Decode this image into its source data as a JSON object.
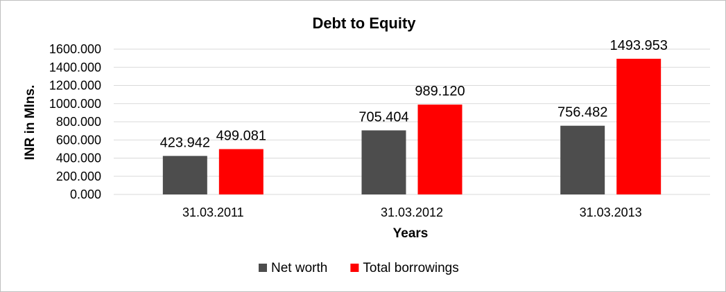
{
  "chart_data": {
    "type": "bar",
    "title": "Debt to Equity",
    "xlabel": "Years",
    "ylabel": "INR in Mlns.",
    "categories": [
      "31.03.2011",
      "31.03.2012",
      "31.03.2013"
    ],
    "series": [
      {
        "name": "Net worth",
        "color": "#4d4d4d",
        "values": [
          423.942,
          705.404,
          756.482
        ],
        "labels": [
          "423.942",
          "705.404",
          "756.482"
        ]
      },
      {
        "name": "Total borrowings",
        "color": "#ff0000",
        "values": [
          499.081,
          989.12,
          1493.953
        ],
        "labels": [
          "499.081",
          "989.120",
          "1493.953"
        ]
      }
    ],
    "ylim": [
      0,
      1600
    ],
    "yticks": [
      0,
      200,
      400,
      600,
      800,
      1000,
      1200,
      1400,
      1600
    ],
    "ytick_labels": [
      "0.000",
      "200.000",
      "400.000",
      "600.000",
      "800.000",
      "1000.000",
      "1200.000",
      "1400.000",
      "1600.000"
    ],
    "grid": true,
    "gridline_color": "#d9d9d9",
    "legend_position": "bottom"
  }
}
